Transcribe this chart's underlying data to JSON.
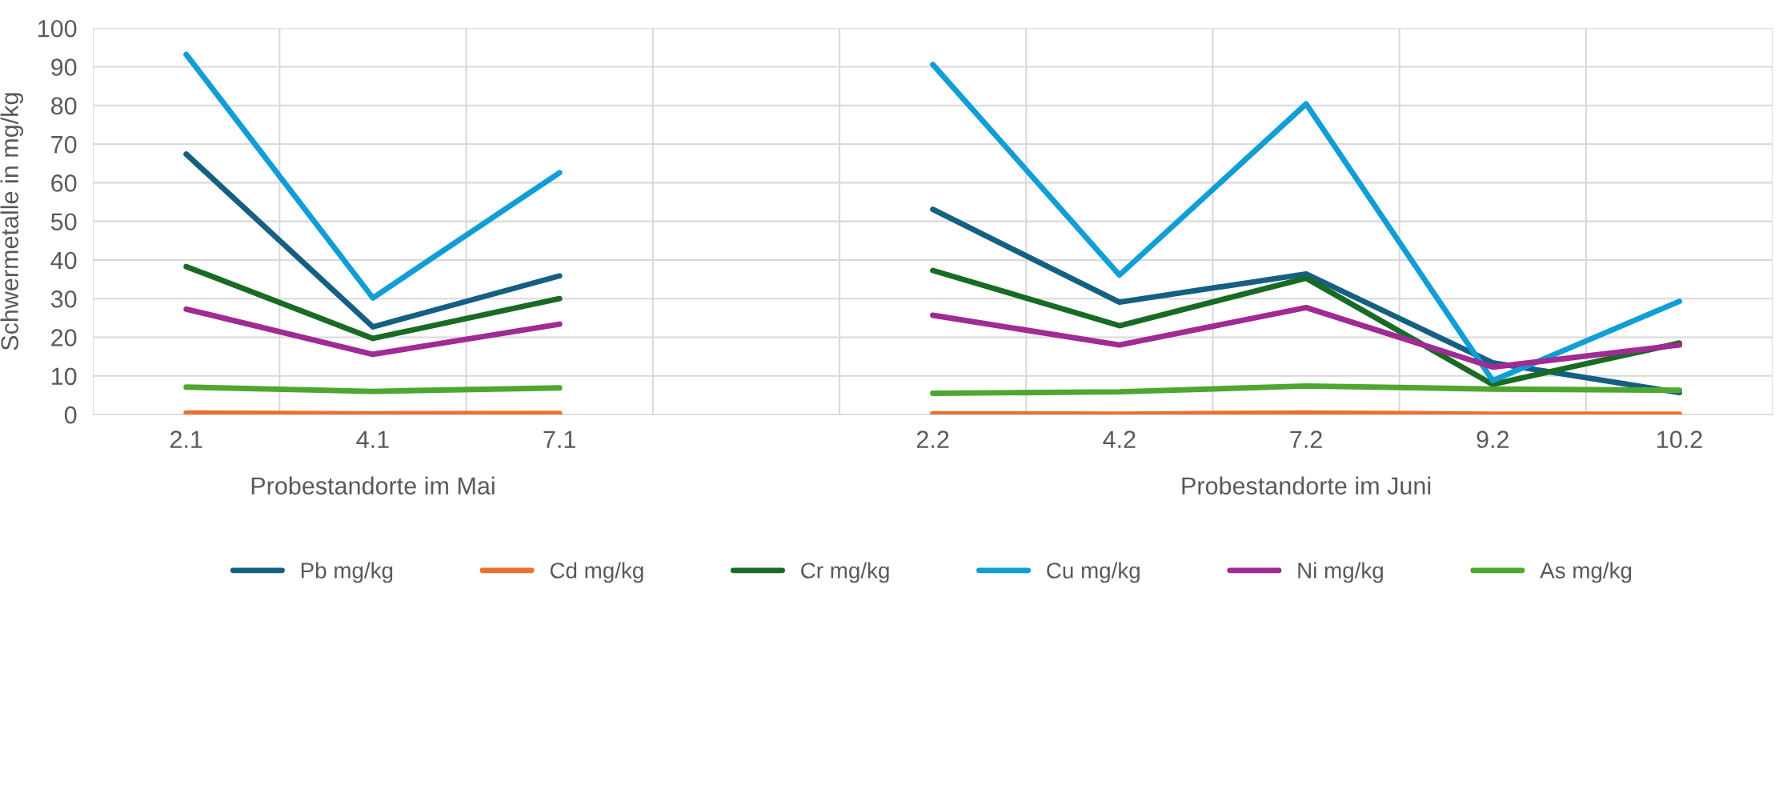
{
  "chart_data": {
    "type": "line",
    "ylabel": "Schwermetalle in mg/kg",
    "categories": [
      "2.1",
      "4.1",
      "7.1",
      null,
      "2.2",
      "4.2",
      "7.2",
      "9.2",
      "10.2"
    ],
    "series": [
      {
        "name": "Pb mg/kg",
        "color": "#156082",
        "values": [
          67.4,
          22.7,
          35.9,
          null,
          53.1,
          29.1,
          36.4,
          13.4,
          5.7
        ]
      },
      {
        "name": "Cd mg/kg",
        "color": "#e97132",
        "values": [
          0.4,
          0.2,
          0.3,
          null,
          0.2,
          0.1,
          0.4,
          0.1,
          0.1
        ]
      },
      {
        "name": "Cr mg/kg",
        "color": "#196b24",
        "values": [
          38.3,
          19.7,
          30.0,
          null,
          37.3,
          23.0,
          35.3,
          7.8,
          18.5
        ]
      },
      {
        "name": "Cu mg/kg",
        "color": "#0f9ed5",
        "values": [
          93.2,
          30.2,
          62.6,
          null,
          90.6,
          36.1,
          80.4,
          8.8,
          29.3
        ]
      },
      {
        "name": "Ni mg/kg",
        "color": "#a02b93",
        "values": [
          27.3,
          15.6,
          23.4,
          null,
          25.7,
          18.0,
          27.7,
          12.3,
          18.0
        ]
      },
      {
        "name": "As mg/kg",
        "color": "#4ea72e",
        "values": [
          7.1,
          6.0,
          6.9,
          null,
          5.5,
          5.9,
          7.4,
          6.6,
          6.3
        ]
      }
    ],
    "annotations": [
      "Probestandorte im Mai",
      "Probestandorte im Juni"
    ],
    "ylim": [
      0,
      100
    ],
    "yticks": [
      0,
      10,
      20,
      30,
      40,
      50,
      60,
      70,
      80,
      90,
      100
    ],
    "grid": true,
    "legend": "bottom",
    "marker": "none",
    "line_style": "solid"
  }
}
